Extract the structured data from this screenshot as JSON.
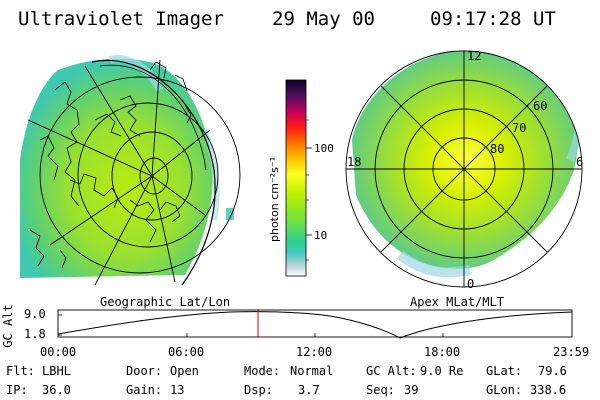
{
  "header": {
    "instrument": "Ultraviolet Imager",
    "date": "29 May 00",
    "time": "09:17:28 UT"
  },
  "panels": {
    "left_label": "Geographic Lat/Lon",
    "right_label": "Apex MLat/MLT"
  },
  "colorbar": {
    "unit_label": "photon cm⁻²s⁻¹",
    "ticks": [
      {
        "label": "100",
        "value": 100
      },
      {
        "label": "10",
        "value": 10
      }
    ],
    "range": [
      2,
      800
    ],
    "scale": "log"
  },
  "polar_plot": {
    "mlt_labels": {
      "top": "12",
      "left": "18",
      "right": "6",
      "bottom": "0"
    },
    "lat_labels": [
      "60",
      "70",
      "80"
    ]
  },
  "altitude_track": {
    "ylabel": "GC Alt",
    "yticks": [
      "9.0",
      "1.8"
    ],
    "xticks": [
      "00:00",
      "06:00",
      "12:00",
      "18:00",
      "23:59"
    ],
    "current_time_marker": "09:17",
    "min_time": "17:20"
  },
  "info": {
    "flt_label": "Flt:",
    "flt_value": "LBHL",
    "ip_label": "IP:",
    "ip_value": "36.0",
    "door_label": "Door:",
    "door_value": "Open",
    "gain_label": "Gain:",
    "gain_value": "13",
    "mode_label": "Mode:",
    "mode_value": "Normal",
    "dsp_label": "Dsp:",
    "dsp_value": "3.7",
    "gcalt_label": "GC Alt:",
    "gcalt_value": "9.0 Re",
    "seq_label": "Seq:",
    "seq_value": "39",
    "glat_label": "GLat:",
    "glat_value": "79.6",
    "glon_label": "GLon:",
    "glon_value": "338.6"
  }
}
